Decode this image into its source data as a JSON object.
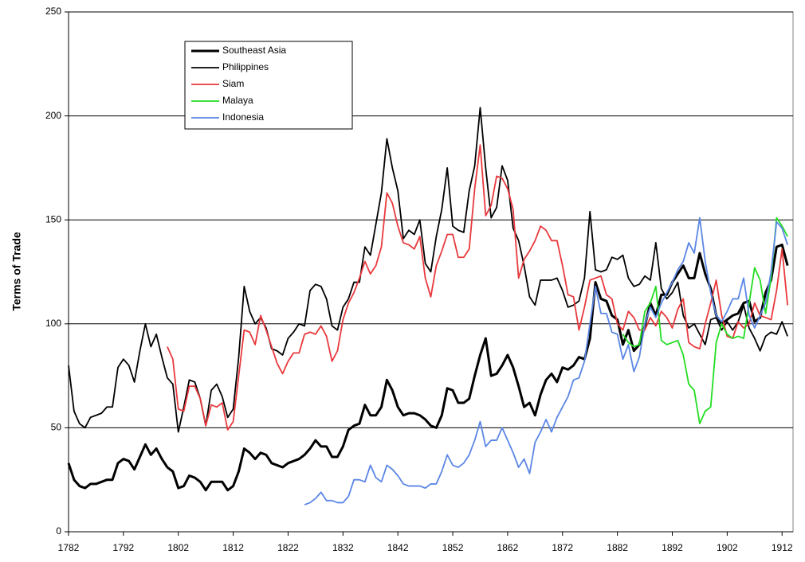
{
  "chart_data": {
    "type": "line",
    "y_label": "Terms of Trade",
    "xlim": [
      1782,
      1914
    ],
    "ylim": [
      0,
      250
    ],
    "xticks": [
      1782,
      1792,
      1802,
      1812,
      1822,
      1832,
      1842,
      1852,
      1862,
      1872,
      1882,
      1892,
      1902,
      1912
    ],
    "yticks": [
      0,
      50,
      100,
      150,
      200,
      250
    ],
    "grid": true,
    "legend": "upper-left",
    "x": [
      1782,
      1783,
      1784,
      1785,
      1786,
      1787,
      1788,
      1789,
      1790,
      1791,
      1792,
      1793,
      1794,
      1795,
      1796,
      1797,
      1798,
      1799,
      1800,
      1801,
      1802,
      1803,
      1804,
      1805,
      1806,
      1807,
      1808,
      1809,
      1810,
      1811,
      1812,
      1813,
      1814,
      1815,
      1816,
      1817,
      1818,
      1819,
      1820,
      1821,
      1822,
      1823,
      1824,
      1825,
      1826,
      1827,
      1828,
      1829,
      1830,
      1831,
      1832,
      1833,
      1834,
      1835,
      1836,
      1837,
      1838,
      1839,
      1840,
      1841,
      1842,
      1843,
      1844,
      1845,
      1846,
      1847,
      1848,
      1849,
      1850,
      1851,
      1852,
      1853,
      1854,
      1855,
      1856,
      1857,
      1858,
      1859,
      1860,
      1861,
      1862,
      1863,
      1864,
      1865,
      1866,
      1867,
      1868,
      1869,
      1870,
      1871,
      1872,
      1873,
      1874,
      1875,
      1876,
      1877,
      1878,
      1879,
      1880,
      1881,
      1882,
      1883,
      1884,
      1885,
      1886,
      1887,
      1888,
      1889,
      1890,
      1891,
      1892,
      1893,
      1894,
      1895,
      1896,
      1897,
      1898,
      1899,
      1900,
      1901,
      1902,
      1903,
      1904,
      1905,
      1906,
      1907,
      1908,
      1909,
      1910,
      1911,
      1912,
      1913
    ],
    "series": [
      {
        "name": "Southeast Asia",
        "color": "#000000",
        "linewidth": 3,
        "values": [
          33,
          25,
          22,
          21,
          23,
          23,
          24,
          25,
          25,
          33,
          35,
          34,
          30,
          36,
          42,
          37,
          40,
          35,
          31,
          29,
          21,
          22,
          27,
          26,
          24,
          20,
          24,
          24,
          24,
          20,
          22,
          29,
          40,
          38,
          35,
          38,
          37,
          33,
          32,
          31,
          33,
          34,
          35,
          37,
          40,
          44,
          41,
          41,
          36,
          36,
          41,
          49,
          51,
          52,
          61,
          56,
          56,
          60,
          73,
          68,
          60,
          56,
          57,
          57,
          56,
          54,
          51,
          50,
          56,
          69,
          68,
          62,
          62,
          64,
          75,
          85,
          93,
          75,
          76,
          80,
          85,
          79,
          70,
          60,
          62,
          56,
          66,
          73,
          76,
          72,
          79,
          78,
          80,
          84,
          83,
          93,
          120,
          112,
          111,
          104,
          102,
          90,
          97,
          87,
          90,
          99,
          110,
          104,
          114,
          114,
          120,
          124,
          128,
          122,
          122,
          134,
          124,
          117,
          104,
          100,
          102,
          104,
          105,
          110,
          111,
          101,
          103,
          115,
          121,
          137,
          138,
          128
        ]
      },
      {
        "name": "Philippines",
        "color": "#000000",
        "linewidth": 1.8,
        "values": [
          80,
          58,
          52,
          50,
          55,
          56,
          57,
          60,
          60,
          79,
          83,
          80,
          72,
          87,
          100,
          89,
          95,
          84,
          74,
          71,
          48,
          60,
          73,
          72,
          64,
          51,
          68,
          71,
          65,
          55,
          59,
          84,
          118,
          106,
          100,
          103,
          98,
          88,
          87,
          85,
          93,
          96,
          100,
          99,
          116,
          119,
          118,
          112,
          99,
          97,
          108,
          112,
          120,
          120,
          137,
          133,
          148,
          163,
          189,
          175,
          164,
          141,
          145,
          143,
          150,
          129,
          125,
          142,
          155,
          175,
          147,
          145,
          144,
          164,
          176,
          204,
          175,
          151,
          156,
          176,
          169,
          146,
          140,
          128,
          113,
          109,
          121,
          121,
          121,
          122,
          116,
          108,
          109,
          111,
          122,
          154,
          126,
          125,
          126,
          132,
          131,
          133,
          122,
          118,
          119,
          123,
          121,
          139,
          117,
          112,
          115,
          120,
          104,
          98,
          100,
          95,
          90,
          102,
          103,
          97,
          101,
          97,
          101,
          109,
          98,
          93,
          87,
          94,
          96,
          95,
          101,
          94
        ]
      },
      {
        "name": "Siam",
        "color": "#e8393d",
        "linewidth": 1.8,
        "values": [
          null,
          null,
          null,
          null,
          null,
          null,
          null,
          null,
          null,
          null,
          null,
          null,
          null,
          null,
          null,
          null,
          null,
          null,
          89,
          83,
          59,
          58,
          70,
          70,
          64,
          51,
          61,
          60,
          62,
          49,
          53,
          75,
          97,
          96,
          90,
          104,
          97,
          89,
          81,
          76,
          82,
          86,
          86,
          95,
          96,
          95,
          99,
          94,
          82,
          87,
          102,
          110,
          115,
          122,
          130,
          124,
          128,
          137,
          163,
          158,
          147,
          139,
          138,
          136,
          142,
          122,
          113,
          128,
          135,
          143,
          143,
          132,
          132,
          136,
          165,
          186,
          152,
          157,
          171,
          170,
          165,
          155,
          122,
          131,
          135,
          140,
          147,
          145,
          140,
          140,
          128,
          114,
          113,
          97,
          108,
          121,
          122,
          123,
          114,
          112,
          100,
          97,
          106,
          103,
          97,
          97,
          103,
          99,
          106,
          103,
          98,
          107,
          112,
          91,
          89,
          88,
          100,
          110,
          121,
          104,
          94,
          93,
          101,
          98,
          100,
          110,
          104,
          103,
          102,
          116,
          136,
          109
        ]
      },
      {
        "name": "Malaya",
        "color": "#22dd22",
        "linewidth": 1.8,
        "values": [
          null,
          null,
          null,
          null,
          null,
          null,
          null,
          null,
          null,
          null,
          null,
          null,
          null,
          null,
          null,
          null,
          null,
          null,
          null,
          null,
          null,
          null,
          null,
          null,
          null,
          null,
          null,
          null,
          null,
          null,
          null,
          null,
          null,
          null,
          null,
          null,
          null,
          null,
          null,
          null,
          null,
          null,
          null,
          null,
          null,
          null,
          null,
          null,
          null,
          null,
          null,
          null,
          null,
          null,
          null,
          null,
          null,
          null,
          null,
          null,
          null,
          null,
          null,
          null,
          null,
          null,
          null,
          null,
          null,
          null,
          null,
          null,
          null,
          null,
          null,
          null,
          null,
          null,
          null,
          null,
          null,
          null,
          null,
          null,
          null,
          null,
          null,
          null,
          null,
          null,
          null,
          null,
          null,
          null,
          null,
          null,
          null,
          null,
          null,
          null,
          null,
          95,
          91,
          89,
          90,
          106,
          110,
          118,
          92,
          90,
          91,
          92,
          85,
          71,
          68,
          52,
          58,
          60,
          91,
          100,
          95,
          93,
          94,
          93,
          110,
          127,
          121,
          105,
          122,
          151,
          147,
          142
        ]
      },
      {
        "name": "Indonesia",
        "color": "#5b86e5",
        "linewidth": 1.8,
        "values": [
          null,
          null,
          null,
          null,
          null,
          null,
          null,
          null,
          null,
          null,
          null,
          null,
          null,
          null,
          null,
          null,
          null,
          null,
          null,
          null,
          null,
          null,
          null,
          null,
          null,
          null,
          null,
          null,
          null,
          null,
          null,
          null,
          null,
          null,
          null,
          null,
          null,
          null,
          null,
          null,
          null,
          null,
          null,
          13,
          14,
          16,
          19,
          15,
          15,
          14,
          14,
          17,
          25,
          25,
          24,
          32,
          26,
          24,
          32,
          30,
          27,
          23,
          22,
          22,
          22,
          21,
          23,
          23,
          29,
          37,
          32,
          31,
          33,
          37,
          44,
          53,
          41,
          44,
          44,
          50,
          44,
          38,
          31,
          35,
          28,
          43,
          48,
          54,
          48,
          55,
          60,
          65,
          73,
          74,
          82,
          100,
          118,
          105,
          105,
          96,
          95,
          83,
          90,
          77,
          84,
          100,
          108,
          103,
          110,
          115,
          120,
          126,
          130,
          139,
          134,
          151,
          130,
          115,
          104,
          101,
          106,
          112,
          112,
          122,
          104,
          98,
          104,
          110,
          125,
          149,
          146,
          138
        ]
      }
    ]
  }
}
